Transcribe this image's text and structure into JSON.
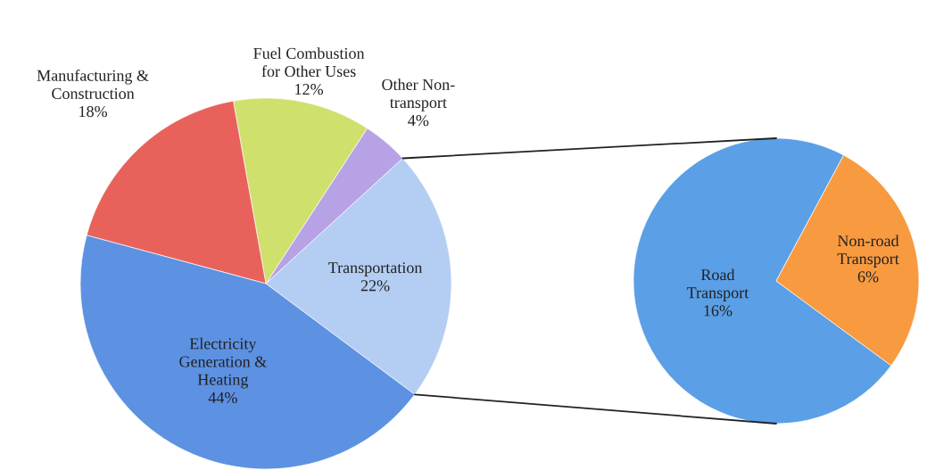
{
  "chart_data": [
    {
      "type": "pie",
      "categories": [
        "Transportation",
        "Other Non-\ntransport",
        "Fuel Combustion\nfor Other Uses",
        "Manufacturing &\nConstruction",
        "Electricity\nGeneration &\nHeating"
      ],
      "values": [
        22,
        4,
        12,
        18,
        44
      ],
      "colors": [
        "#b4cdf3",
        "#b7a2e6",
        "#cfe06c",
        "#e8625b",
        "#5d91e2"
      ],
      "value_labels": [
        "22%",
        "4%",
        "12%",
        "18%",
        "44%"
      ]
    },
    {
      "type": "pie",
      "categories": [
        "Road\nTransport",
        "Non-road\nTransport"
      ],
      "values": [
        16,
        6
      ],
      "colors": [
        "#5b9fe6",
        "#f89a40"
      ],
      "value_labels": [
        "16%",
        "6%"
      ]
    }
  ]
}
